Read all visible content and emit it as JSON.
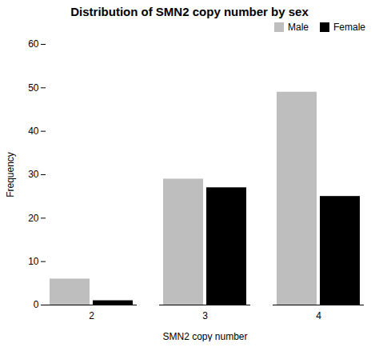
{
  "chart_data": {
    "type": "bar",
    "title": "Distribution of SMN2 copy number by sex",
    "xlabel": "SMN2 copy number",
    "ylabel": "Frequency",
    "categories": [
      2,
      3,
      4
    ],
    "series": [
      {
        "name": "Male",
        "color": "#bebebe",
        "values": [
          6,
          29,
          49
        ]
      },
      {
        "name": "Female",
        "color": "#000000",
        "values": [
          1,
          27,
          25
        ]
      }
    ],
    "ylim": [
      0,
      60
    ],
    "yticks": [
      0,
      10,
      20,
      30,
      40,
      50,
      60
    ],
    "grid": false,
    "legend": "upper right"
  }
}
